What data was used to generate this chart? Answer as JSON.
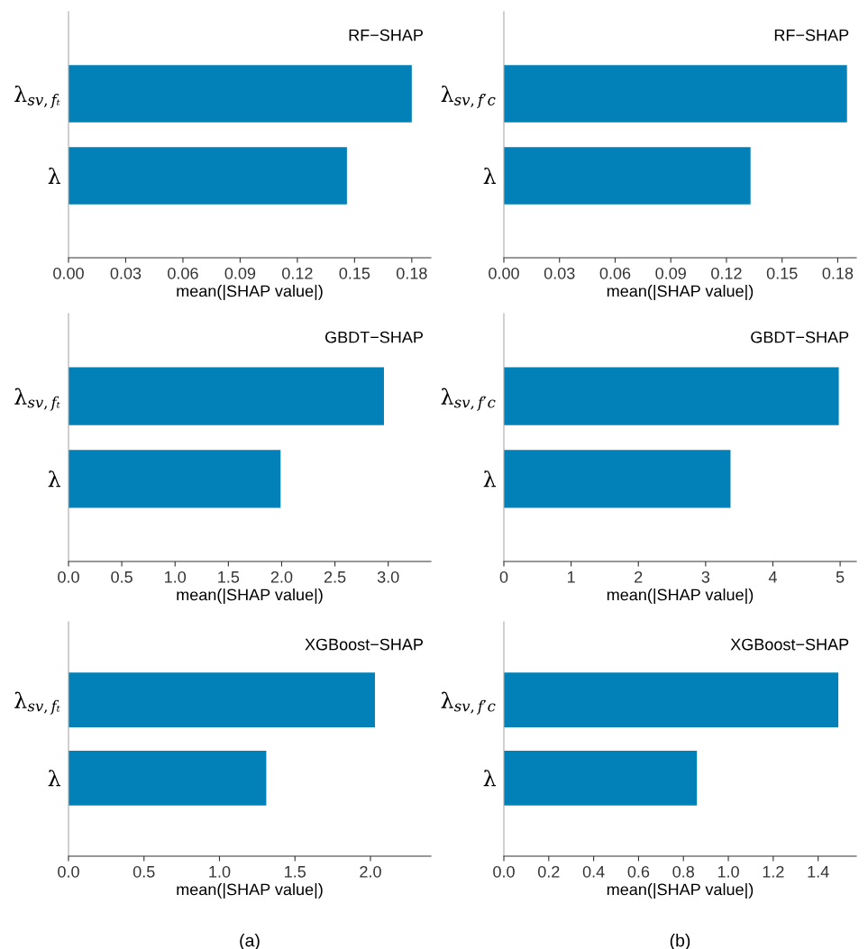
{
  "chart_data": [
    {
      "type": "bar",
      "orientation": "horizontal",
      "title": "RF−SHAP",
      "xlabel": "mean(|SHAP value|)",
      "categories": [
        "λ$_{sv,fₜ}$",
        "λ"
      ],
      "values": [
        0.18,
        0.146
      ],
      "color": "#0281b8",
      "xlim": [
        0,
        0.19
      ],
      "xticks": [
        {
          "value": 0,
          "label": "0.00"
        },
        {
          "value": 0.03,
          "label": "0.03"
        },
        {
          "value": 0.06,
          "label": "0.06"
        },
        {
          "value": 0.09,
          "label": "0.09"
        },
        {
          "value": 0.12,
          "label": "0.12"
        },
        {
          "value": 0.15,
          "label": "0.15"
        },
        {
          "value": 0.18,
          "label": "0.18"
        }
      ],
      "grid": false,
      "legend": false
    },
    {
      "type": "bar",
      "orientation": "horizontal",
      "title": "RF−SHAP",
      "xlabel": "mean(|SHAP value|)",
      "categories": [
        "λ$_{sv,f′}$$_{c}$",
        "λ"
      ],
      "values": [
        0.185,
        0.133
      ],
      "color": "#0281b8",
      "xlim": [
        0,
        0.19
      ],
      "xticks": [
        {
          "value": 0,
          "label": "0.00"
        },
        {
          "value": 0.03,
          "label": "0.03"
        },
        {
          "value": 0.06,
          "label": "0.06"
        },
        {
          "value": 0.09,
          "label": "0.09"
        },
        {
          "value": 0.12,
          "label": "0.12"
        },
        {
          "value": 0.15,
          "label": "0.15"
        },
        {
          "value": 0.18,
          "label": "0.18"
        }
      ],
      "grid": false,
      "legend": false
    },
    {
      "type": "bar",
      "orientation": "horizontal",
      "title": "GBDT−SHAP",
      "xlabel": "mean(|SHAP value|)",
      "categories": [
        "λ$_{sv,fₜ}$",
        "λ"
      ],
      "values": [
        2.96,
        1.99
      ],
      "color": "#0281b8",
      "xlim": [
        0,
        3.4
      ],
      "xticks": [
        {
          "value": 0,
          "label": "0.0"
        },
        {
          "value": 0.5,
          "label": "0.5"
        },
        {
          "value": 1,
          "label": "1.0"
        },
        {
          "value": 1.5,
          "label": "1.5"
        },
        {
          "value": 2,
          "label": "2.0"
        },
        {
          "value": 2.5,
          "label": "2.5"
        },
        {
          "value": 3,
          "label": "3.0"
        }
      ],
      "grid": false,
      "legend": false
    },
    {
      "type": "bar",
      "orientation": "horizontal",
      "title": "GBDT−SHAP",
      "xlabel": "mean(|SHAP value|)",
      "categories": [
        "λ$_{sv,f′}$$_{c}$",
        "λ"
      ],
      "values": [
        4.98,
        3.37
      ],
      "color": "#0281b8",
      "xlim": [
        0,
        5.24
      ],
      "xticks": [
        0,
        1,
        2,
        3,
        4,
        5
      ],
      "grid": false,
      "legend": false
    },
    {
      "type": "bar",
      "orientation": "horizontal",
      "title": "XGBoost−SHAP",
      "xlabel": "mean(|SHAP value|)",
      "categories": [
        "λ$_{sv,fₜ}$",
        "λ"
      ],
      "values": [
        2.03,
        1.31
      ],
      "color": "#0281b8",
      "xlim": [
        0,
        2.4
      ],
      "xticks": [
        {
          "value": 0,
          "label": "0.0"
        },
        {
          "value": 0.5,
          "label": "0.5"
        },
        {
          "value": 1,
          "label": "1.0"
        },
        {
          "value": 1.5,
          "label": "1.5"
        },
        {
          "value": 2,
          "label": "2.0"
        }
      ],
      "grid": false,
      "legend": false,
      "annotations": [
        "(a)"
      ]
    },
    {
      "type": "bar",
      "orientation": "horizontal",
      "title": "XGBoost−SHAP",
      "xlabel": "mean(|SHAP value|)",
      "categories": [
        "λ$_{sv,f′}$$_{c}$",
        "λ"
      ],
      "values": [
        1.49,
        0.86
      ],
      "color": "#0281b8",
      "xlim": [
        0,
        1.57
      ],
      "xticks": [
        {
          "value": 0,
          "label": "0.0"
        },
        {
          "value": 0.2,
          "label": "0.2"
        },
        {
          "value": 0.4,
          "label": "0.4"
        },
        {
          "value": 0.6,
          "label": "0.6"
        },
        {
          "value": 0.8,
          "label": "0.8"
        },
        {
          "value": 1,
          "label": "1.0"
        },
        {
          "value": 1.2,
          "label": "1.2"
        },
        {
          "value": 1.4,
          "label": "1.4"
        }
      ],
      "grid": false,
      "legend": false,
      "annotations": [
        "(b)"
      ]
    }
  ]
}
